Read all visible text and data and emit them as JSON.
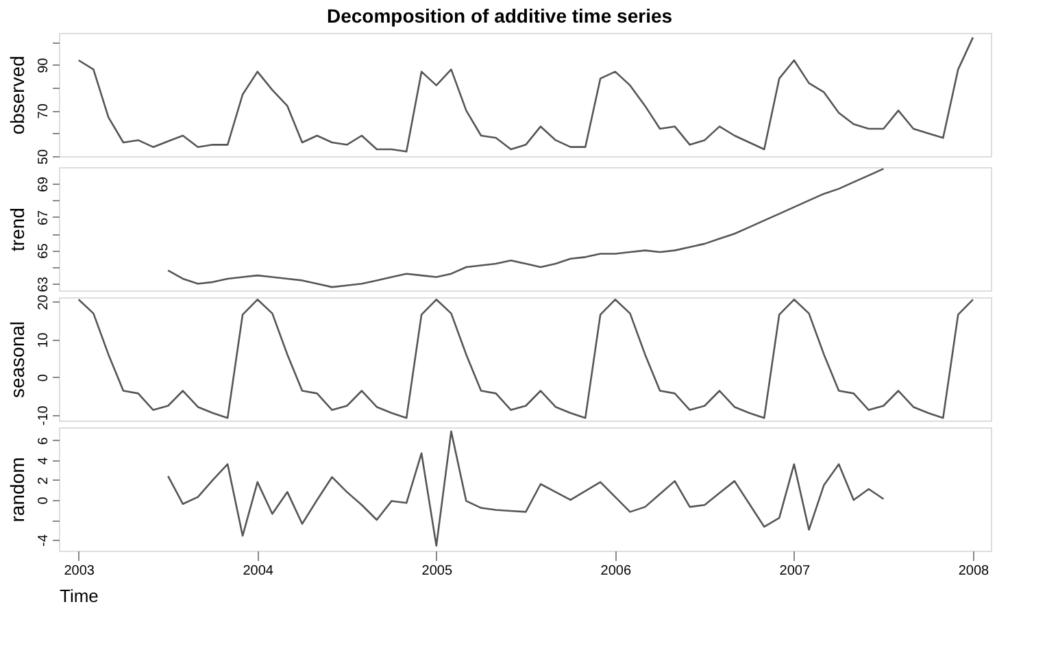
{
  "chart_data": [
    {
      "type": "line",
      "title": "Decomposition of additive time series",
      "ylabel": "observed",
      "color": "#555555",
      "tick_labels": "y",
      "x": [
        2003,
        2003.083,
        2003.167,
        2003.25,
        2003.333,
        2003.417,
        2003.5,
        2003.583,
        2003.667,
        2003.75,
        2003.833,
        2003.917,
        2004,
        2004.083,
        2004.167,
        2004.25,
        2004.333,
        2004.417,
        2004.5,
        2004.583,
        2004.667,
        2004.75,
        2004.833,
        2004.917,
        2005,
        2005.083,
        2005.167,
        2005.25,
        2005.333,
        2005.417,
        2005.5,
        2005.583,
        2005.667,
        2005.75,
        2005.833,
        2005.917,
        2006,
        2006.083,
        2006.167,
        2006.25,
        2006.333,
        2006.417,
        2006.5,
        2006.583,
        2006.667,
        2006.75,
        2006.833,
        2006.917,
        2007,
        2007.083,
        2007.167,
        2007.25,
        2007.333,
        2007.417,
        2007.5,
        2007.583,
        2007.667,
        2007.75,
        2007.833,
        2007.917,
        2008
      ],
      "values": [
        92,
        88,
        67,
        56,
        57,
        54,
        56.5,
        59,
        54,
        55,
        55,
        77,
        87,
        79,
        72,
        56,
        59,
        56,
        55,
        59,
        53,
        53,
        52,
        87,
        81,
        88,
        70,
        59,
        58,
        53,
        55,
        63,
        57,
        54,
        54,
        84,
        87,
        81,
        72,
        62,
        63,
        55,
        57,
        63,
        59,
        56,
        53,
        84,
        92,
        82,
        78,
        69,
        64,
        62,
        62,
        70,
        62,
        60,
        58,
        88,
        102
      ],
      "xlim": [
        2002.89,
        2008.1
      ],
      "xticks": [
        2003,
        2004,
        2005,
        2006,
        2007,
        2008
      ],
      "ylim": [
        50,
        104
      ],
      "yticks": [
        50,
        {
          "value": 60,
          "label": null
        },
        70,
        {
          "value": 80,
          "label": null
        },
        90,
        {
          "value": 100,
          "label": null
        }
      ]
    },
    {
      "type": "line",
      "ylabel": "trend",
      "color": "#555555",
      "tick_labels": "y",
      "x": [
        2003.5,
        2003.583,
        2003.667,
        2003.75,
        2003.833,
        2003.917,
        2004,
        2004.083,
        2004.167,
        2004.25,
        2004.333,
        2004.417,
        2004.5,
        2004.583,
        2004.667,
        2004.75,
        2004.833,
        2004.917,
        2005,
        2005.083,
        2005.167,
        2005.25,
        2005.333,
        2005.417,
        2005.5,
        2005.583,
        2005.667,
        2005.75,
        2005.833,
        2005.917,
        2006,
        2006.083,
        2006.167,
        2006.25,
        2006.333,
        2006.417,
        2006.5,
        2006.583,
        2006.667,
        2006.75,
        2006.833,
        2006.917,
        2007,
        2007.083,
        2007.167,
        2007.25,
        2007.333,
        2007.417,
        2007.5
      ],
      "values": [
        63.8,
        63.3,
        63.0,
        63.1,
        63.3,
        63.4,
        63.5,
        63.4,
        63.3,
        63.2,
        63.0,
        62.8,
        62.9,
        63.0,
        63.2,
        63.4,
        63.6,
        63.5,
        63.4,
        63.6,
        64.0,
        64.1,
        64.2,
        64.4,
        64.2,
        64.0,
        64.2,
        64.5,
        64.6,
        64.8,
        64.8,
        64.9,
        65.0,
        64.9,
        65.0,
        65.2,
        65.4,
        65.7,
        66.0,
        66.4,
        66.8,
        67.2,
        67.6,
        68.0,
        68.4,
        68.7,
        69.1,
        69.5,
        69.9
      ],
      "xlim": [
        2002.89,
        2008.1
      ],
      "xticks": [
        2003,
        2004,
        2005,
        2006,
        2007,
        2008
      ],
      "ylim": [
        62.6,
        70
      ],
      "yticks": [
        63,
        {
          "value": 64,
          "label": null
        },
        65,
        {
          "value": 66,
          "label": null
        },
        67,
        {
          "value": 68,
          "label": null
        },
        69
      ]
    },
    {
      "type": "line",
      "ylabel": "seasonal",
      "color": "#555555",
      "tick_labels": "y",
      "x": [
        2003,
        2003.083,
        2003.167,
        2003.25,
        2003.333,
        2003.417,
        2003.5,
        2003.583,
        2003.667,
        2003.75,
        2003.833,
        2003.917,
        2004,
        2004.083,
        2004.167,
        2004.25,
        2004.333,
        2004.417,
        2004.5,
        2004.583,
        2004.667,
        2004.75,
        2004.833,
        2004.917,
        2005,
        2005.083,
        2005.167,
        2005.25,
        2005.333,
        2005.417,
        2005.5,
        2005.583,
        2005.667,
        2005.75,
        2005.833,
        2005.917,
        2006,
        2006.083,
        2006.167,
        2006.25,
        2006.333,
        2006.417,
        2006.5,
        2006.583,
        2006.667,
        2006.75,
        2006.833,
        2006.917,
        2007,
        2007.083,
        2007.167,
        2007.25,
        2007.333,
        2007.417,
        2007.5,
        2007.583,
        2007.667,
        2007.75,
        2007.833,
        2007.917,
        2008
      ],
      "values": [
        20.6,
        16.9,
        6,
        -3.6,
        -4.3,
        -8.7,
        -7.6,
        -3.6,
        -7.9,
        -9.5,
        -10.8,
        16.6,
        20.6,
        16.9,
        6,
        -3.6,
        -4.3,
        -8.7,
        -7.6,
        -3.6,
        -7.9,
        -9.5,
        -10.8,
        16.6,
        20.6,
        16.9,
        6,
        -3.6,
        -4.3,
        -8.7,
        -7.6,
        -3.6,
        -7.9,
        -9.5,
        -10.8,
        16.6,
        20.6,
        16.9,
        6,
        -3.6,
        -4.3,
        -8.7,
        -7.6,
        -3.6,
        -7.9,
        -9.5,
        -10.8,
        16.6,
        20.6,
        16.9,
        6,
        -3.6,
        -4.3,
        -8.7,
        -7.6,
        -3.6,
        -7.9,
        -9.5,
        -10.8,
        16.6,
        20.6
      ],
      "xlim": [
        2002.89,
        2008.1
      ],
      "xticks": [
        2003,
        2004,
        2005,
        2006,
        2007,
        2008
      ],
      "ylim": [
        -11.5,
        21.2
      ],
      "yticks": [
        -10,
        0,
        10,
        20
      ]
    },
    {
      "type": "line",
      "ylabel": "random",
      "xlabel": "Time",
      "color": "#555555",
      "x": [
        2003.5,
        2003.583,
        2003.667,
        2003.75,
        2003.833,
        2003.917,
        2004,
        2004.083,
        2004.167,
        2004.25,
        2004.333,
        2004.417,
        2004.5,
        2004.583,
        2004.667,
        2004.75,
        2004.833,
        2004.917,
        2005,
        2005.083,
        2005.167,
        2005.25,
        2005.333,
        2005.417,
        2005.5,
        2005.583,
        2005.667,
        2005.75,
        2005.833,
        2005.917,
        2006,
        2006.083,
        2006.167,
        2006.25,
        2006.333,
        2006.417,
        2006.5,
        2006.583,
        2006.667,
        2006.75,
        2006.833,
        2006.917,
        2007,
        2007.083,
        2007.167,
        2007.25,
        2007.333,
        2007.417,
        2007.5
      ],
      "values": [
        2.4,
        -0.4,
        0.3,
        2.0,
        3.6,
        -3.6,
        1.8,
        -1.4,
        0.8,
        -2.4,
        0,
        2.3,
        0.8,
        -0.5,
        -2.0,
        -0.1,
        -0.3,
        4.7,
        -4.6,
        6.9,
        -0.1,
        -0.8,
        -1.0,
        -1.1,
        -1.2,
        1.6,
        0.8,
        0,
        0.9,
        1.8,
        0.3,
        -1.2,
        -0.7,
        0.6,
        1.9,
        -0.7,
        -0.5,
        0.7,
        1.9,
        -0.4,
        -2.7,
        -1.8,
        3.6,
        -3.0,
        1.5,
        3.6,
        0,
        1.1,
        0.1
      ],
      "xlim": [
        2002.89,
        2008.1
      ],
      "xticks": [
        2003,
        2004,
        2005,
        2006,
        2007,
        2008
      ],
      "ylim": [
        -5.1,
        7.3
      ],
      "yticks": [
        -4,
        {
          "value": -2,
          "label": null
        },
        0,
        2,
        4,
        6
      ]
    }
  ]
}
